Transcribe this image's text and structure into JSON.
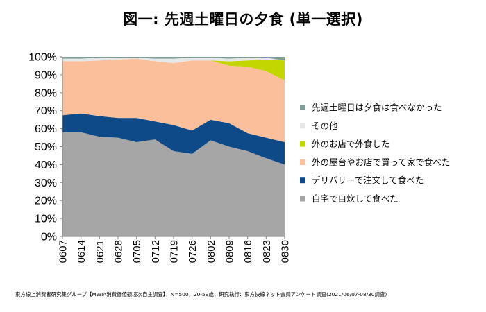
{
  "chart_data": {
    "type": "area",
    "stacked": true,
    "title": "図一: 先週土曜日の夕食 (単一選択)",
    "categories": [
      "0607",
      "0614",
      "0621",
      "0628",
      "0705",
      "0712",
      "0719",
      "0726",
      "0802",
      "0809",
      "0816",
      "0823",
      "0830"
    ],
    "ylim": [
      0,
      100
    ],
    "yticks": [
      "0%",
      "10%",
      "20%",
      "30%",
      "40%",
      "50%",
      "60%",
      "70%",
      "80%",
      "90%",
      "100%"
    ],
    "legend_position": "right",
    "series": [
      {
        "name": "自宅で自炊して食べた",
        "color": "#a6a6a6",
        "values": [
          58,
          58,
          55.5,
          55,
          52.5,
          54,
          47.5,
          46,
          53.5,
          50,
          47.5,
          43.5,
          40
        ]
      },
      {
        "name": "デリバリーで注文して食べた",
        "color": "#0e4a88",
        "values": [
          9.5,
          10.5,
          11.5,
          11,
          13.5,
          10,
          14.5,
          13,
          11.5,
          13,
          10,
          11.5,
          12.5
        ]
      },
      {
        "name": "外の屋台やお店で買って家で食べた",
        "color": "#fbbf9b",
        "values": [
          30,
          29,
          31,
          32.5,
          33,
          33.5,
          34.5,
          39,
          33,
          32,
          37,
          37,
          34.5
        ]
      },
      {
        "name": "外のお店で外食した",
        "color": "#c4d600",
        "values": [
          0,
          0,
          0,
          0,
          0,
          0,
          0,
          0,
          0,
          2.5,
          3.5,
          6.5,
          11
        ]
      },
      {
        "name": "その他",
        "color": "#e7e7e7",
        "values": [
          1.5,
          1.5,
          1.5,
          1,
          0.5,
          1.5,
          2.5,
          1.5,
          1.5,
          1.5,
          1.5,
          1,
          0
        ]
      },
      {
        "name": "先週土曜日は夕食は食べなかった",
        "color": "#7f9c96",
        "values": [
          1,
          1,
          0.5,
          0.5,
          0.5,
          1,
          1,
          0.5,
          0.5,
          1,
          0.5,
          0.5,
          2
        ]
      }
    ],
    "footnote": "東方線上消費者研究集グループ【MWIA消費価値観境次自主調査】，N=500，20-59歳；研究執行：東方快線ネット会員アンケート調査(2021/06/07-08/30調査)"
  }
}
